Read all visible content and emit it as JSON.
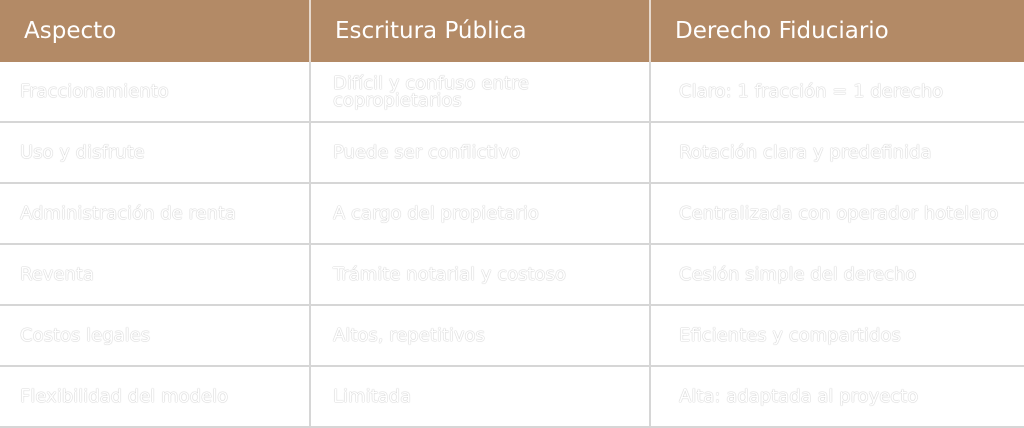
{
  "headers": [
    "Aspecto",
    "Escritura Pública",
    "Derecho Fiduciario"
  ],
  "rows": [
    [
      "Fraccionamiento",
      "Difícil y confuso entre copropietarios",
      "Claro: 1 fracción = 1 derecho"
    ],
    [
      "Uso y disfrute",
      "Puede ser conflictivo",
      "Rotación clara y predefinida"
    ],
    [
      "Administración de renta",
      "A cargo del propietario",
      "Centralizada con operador hotelero"
    ],
    [
      "Reventa",
      "Trámite notarial y costoso",
      "Cesión simple del derecho"
    ],
    [
      "Costos legales",
      "Altos, repetitivos",
      "Eficientes y compartidos"
    ],
    [
      "Flexibilidad del modelo",
      "Limitada",
      "Alta: adaptada al proyecto"
    ]
  ],
  "colors": {
    "header_bg": "#b38a66",
    "header_text": "#ffffff",
    "cell_text": "#ffffff",
    "border": "#d6d6d6"
  }
}
